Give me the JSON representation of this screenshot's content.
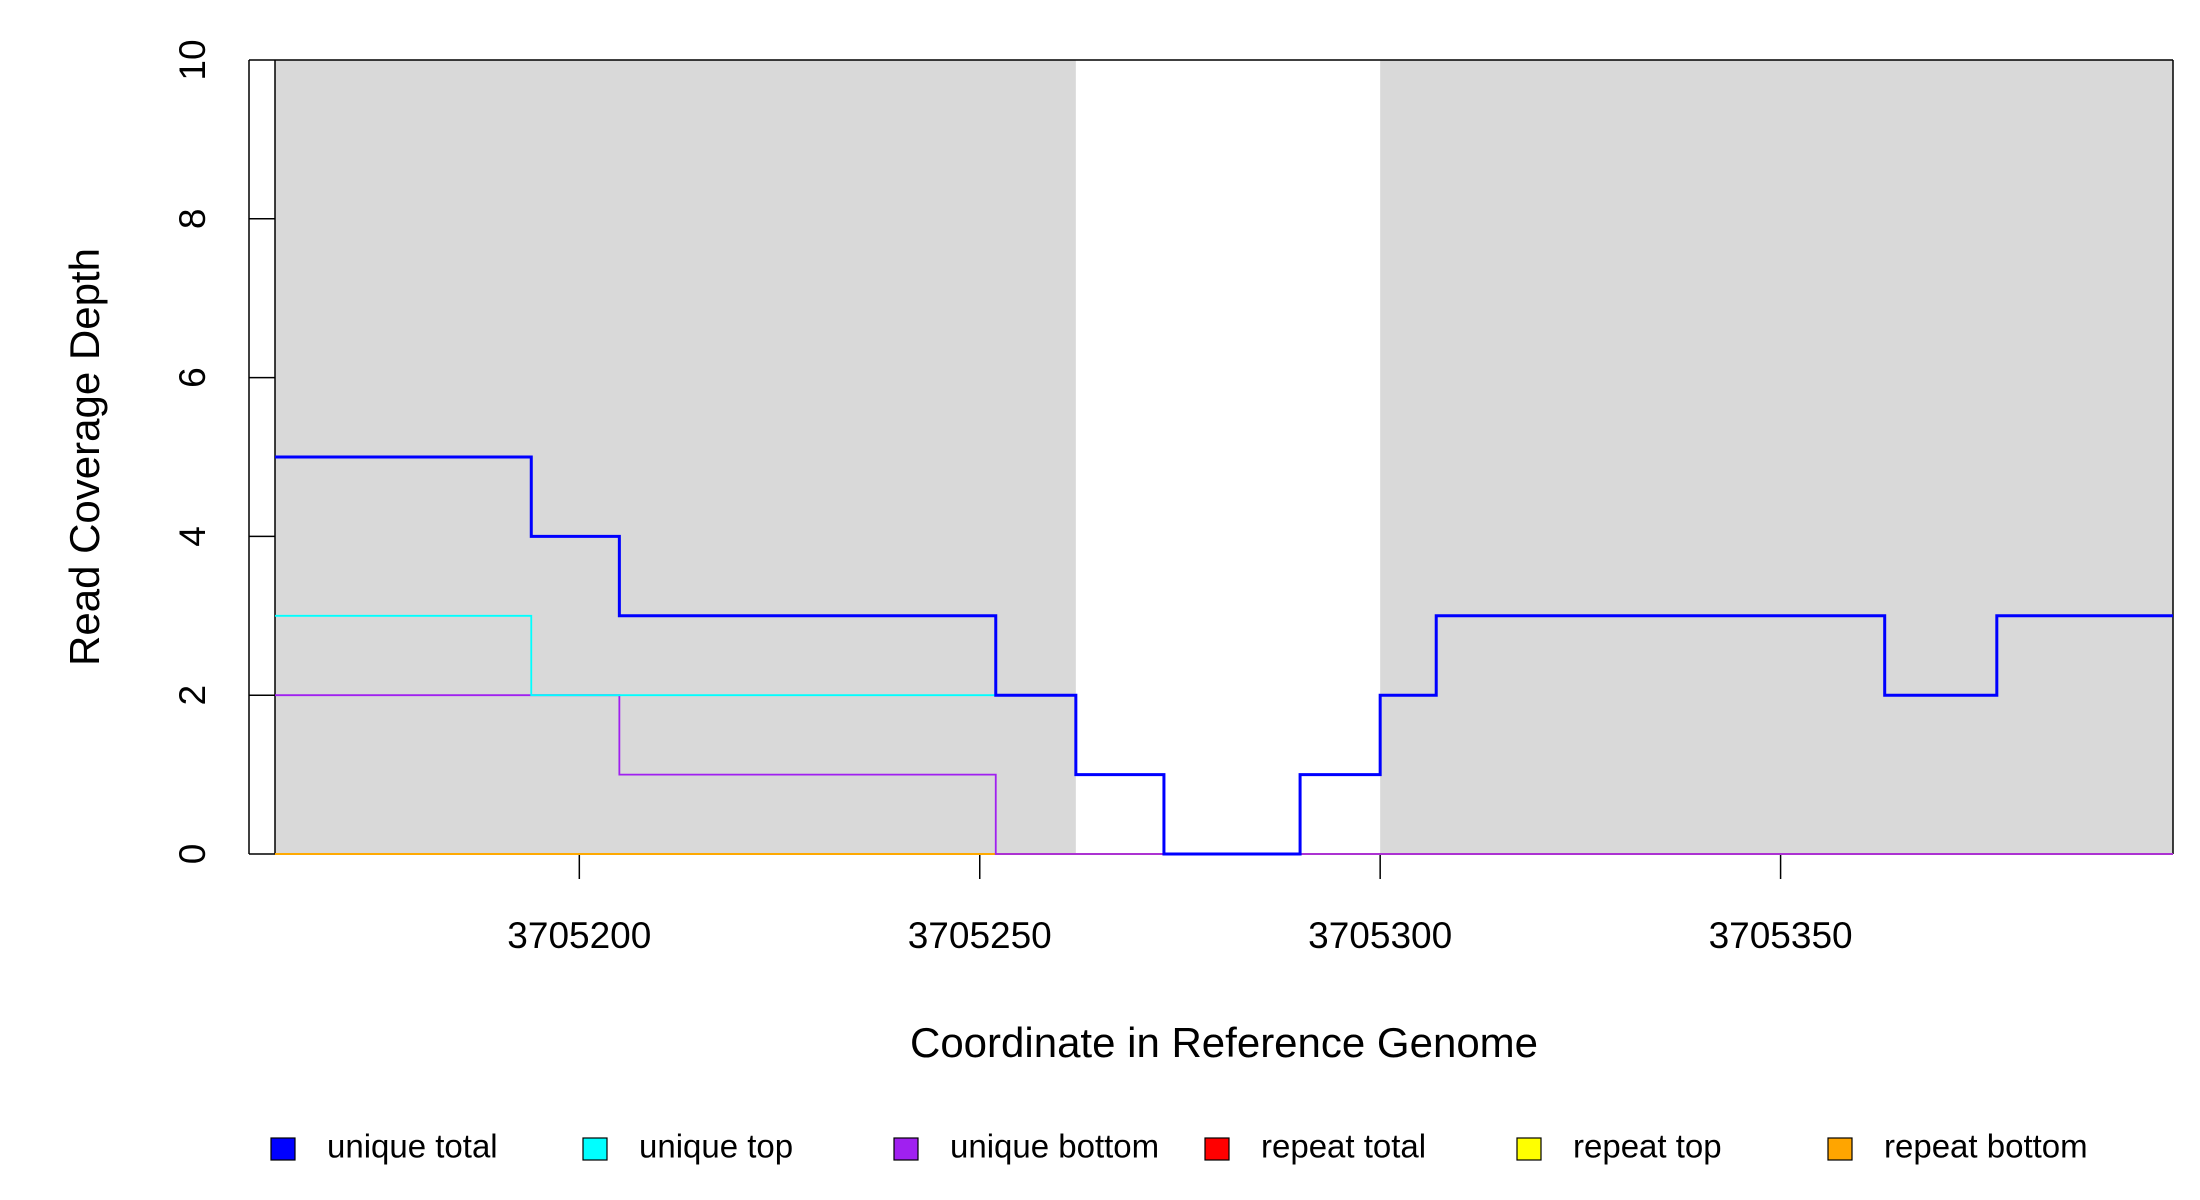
{
  "chart_data": {
    "type": "step",
    "xlabel": "Coordinate in Reference Genome",
    "ylabel": "Read Coverage Depth",
    "x": [
      3705162,
      3705194,
      3705205,
      3705252,
      3705262,
      3705273,
      3705290,
      3705300,
      3705307,
      3705363,
      3705377,
      3705399
    ],
    "series": [
      {
        "name": "repeat total",
        "color": "#ff0000",
        "values": [
          0,
          0,
          0,
          0,
          0,
          0,
          0,
          0,
          0,
          0,
          0,
          0
        ]
      },
      {
        "name": "repeat top",
        "color": "#ffff00",
        "values": [
          0,
          0,
          0,
          0,
          0,
          0,
          0,
          0,
          0,
          0,
          0,
          0
        ]
      },
      {
        "name": "repeat bottom",
        "color": "#ffa500",
        "values": [
          0,
          0,
          0,
          0,
          0,
          0,
          0,
          0,
          0,
          0,
          0,
          0
        ]
      },
      {
        "name": "unique bottom",
        "color": "#a020f0",
        "values": [
          2,
          2,
          1,
          0,
          0,
          0,
          0,
          0,
          0,
          0,
          0,
          0
        ]
      },
      {
        "name": "unique top",
        "color": "#00ffff",
        "values": [
          3,
          2,
          2,
          2,
          1,
          0,
          1,
          2,
          3,
          2,
          3,
          3
        ]
      },
      {
        "name": "unique total",
        "color": "#0000ff",
        "values": [
          5,
          4,
          3,
          2,
          1,
          0,
          1,
          2,
          3,
          2,
          3,
          3
        ]
      }
    ],
    "legend_order": [
      5,
      4,
      3,
      0,
      1,
      2
    ],
    "shaded_regions": [
      [
        3705162,
        3705262
      ],
      [
        3705300,
        3705399
      ]
    ],
    "shade_color": "#d9d9d9",
    "xlim": [
      3705162,
      3705399
    ],
    "xticks": [
      3705200,
      3705250,
      3705300,
      3705350
    ],
    "ylim": [
      0,
      10
    ],
    "yticks": [
      0,
      2,
      4,
      6,
      8,
      10
    ]
  }
}
